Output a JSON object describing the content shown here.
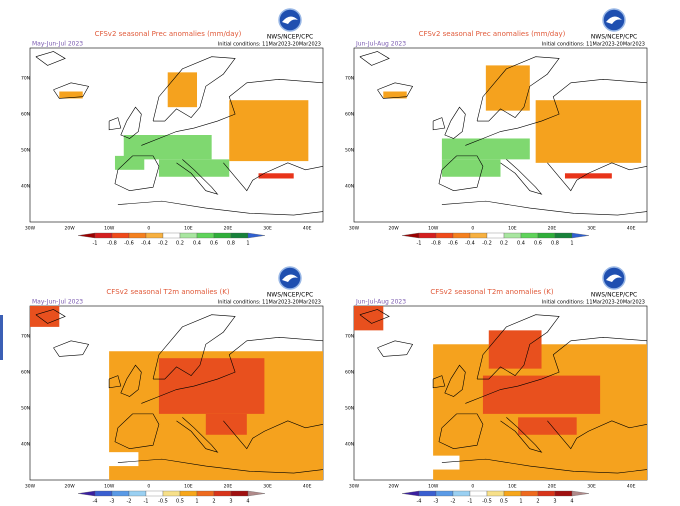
{
  "panels": [
    {
      "title": "CFSv2 seasonal Prec anomalies (mm/day)",
      "season": "May-Jun-Jul 2023",
      "init": "Initial conditions: 11Mar2023-20Mar2023",
      "logo_text": "NWS/NCEP/CPC",
      "lat_labels": [
        "70N",
        "60N",
        "50N",
        "40N"
      ],
      "lon_labels": [
        "30W",
        "20W",
        "10W",
        "0",
        "10E",
        "20E",
        "30E",
        "40E"
      ],
      "colorbar": [
        -1,
        -0.8,
        -0.6,
        -0.4,
        -0.2,
        0.2,
        0.4,
        0.6,
        0.8,
        1
      ]
    },
    {
      "title": "CFSv2 seasonal Prec anomalies (mm/day)",
      "season": "Jun-Jul-Aug 2023",
      "init": "Initial conditions: 11Mar2023-20Mar2023",
      "logo_text": "NWS/NCEP/CPC",
      "lat_labels": [
        "70N",
        "60N",
        "50N",
        "40N"
      ],
      "lon_labels": [
        "30W",
        "20W",
        "10W",
        "0",
        "10E",
        "20E",
        "30E",
        "40E"
      ],
      "colorbar": [
        -1,
        -0.8,
        -0.6,
        -0.4,
        -0.2,
        0.2,
        0.4,
        0.6,
        0.8,
        1
      ]
    },
    {
      "title": "CFSv2 seasonal T2m anomalies (K)",
      "season": "May-Jun-Jul 2023",
      "init": "Initial conditions: 11Mar2023-20Mar2023",
      "logo_text": "NWS/NCEP/CPC",
      "lat_labels": [
        "70N",
        "60N",
        "50N",
        "40N"
      ],
      "lon_labels": [
        "30W",
        "20W",
        "10W",
        "0",
        "10E",
        "20E",
        "30E",
        "40E"
      ],
      "colorbar": [
        -4,
        -3,
        -2,
        -1,
        -0.5,
        0.5,
        1,
        2,
        3,
        4
      ]
    },
    {
      "title": "CFSv2 seasonal T2m anomalies (K)",
      "season": "Jun-Jul-Aug 2023",
      "init": "Initial conditions: 11Mar2023-20Mar2023",
      "logo_text": "NWS/NCEP/CPC",
      "lat_labels": [
        "70N",
        "60N",
        "50N",
        "40N"
      ],
      "lon_labels": [
        "30W",
        "20W",
        "10W",
        "0",
        "10E",
        "20E",
        "30E",
        "40E"
      ],
      "colorbar": [
        -4,
        -3,
        -2,
        -1,
        -0.5,
        0.5,
        1,
        2,
        3,
        4
      ]
    }
  ]
}
